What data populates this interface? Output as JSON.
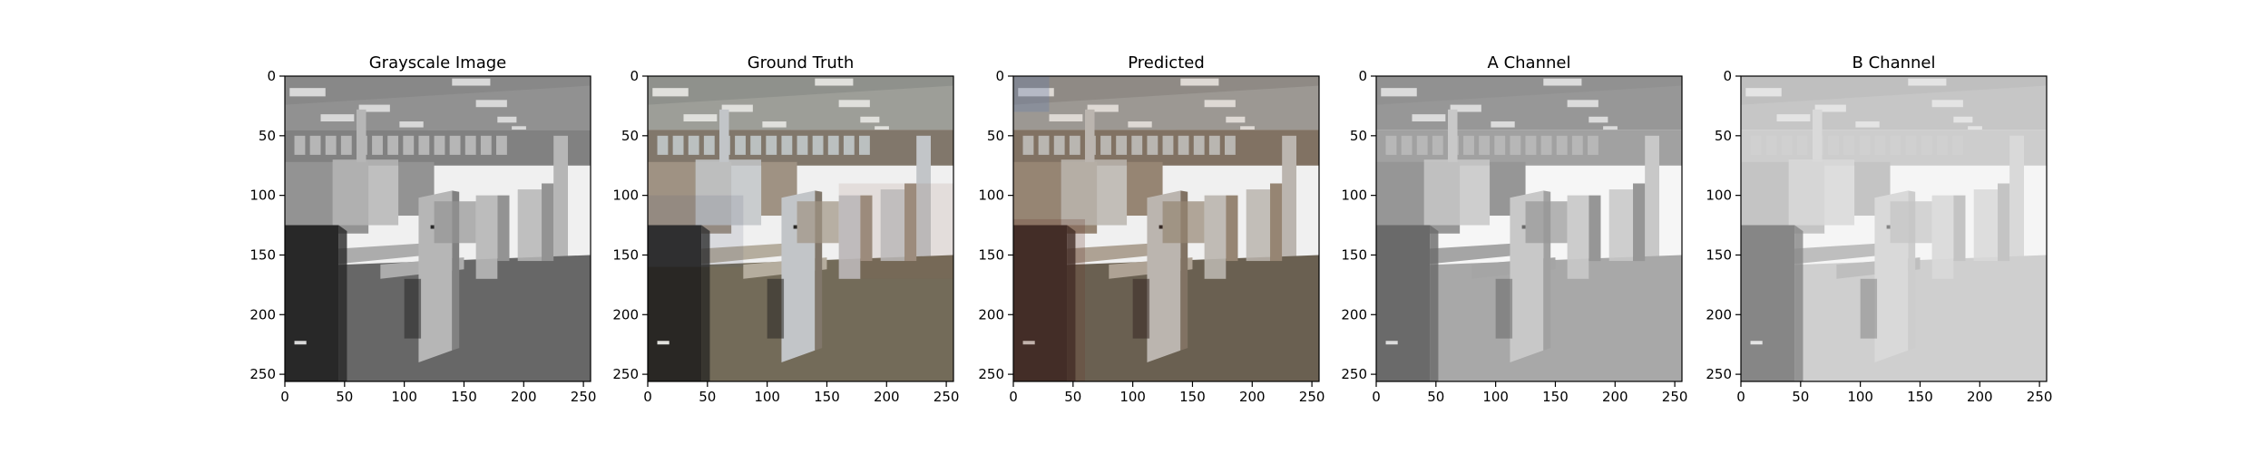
{
  "figure": {
    "panels": [
      {
        "id": "grayscale",
        "title": "Grayscale Image",
        "mode": "gray"
      },
      {
        "id": "ground-truth",
        "title": "Ground Truth",
        "mode": "color"
      },
      {
        "id": "predicted",
        "title": "Predicted",
        "mode": "pred"
      },
      {
        "id": "a-channel",
        "title": "A Channel",
        "mode": "a"
      },
      {
        "id": "b-channel",
        "title": "B Channel",
        "mode": "b"
      }
    ],
    "x_ticks": [
      "0",
      "50",
      "100",
      "150",
      "200",
      "250"
    ],
    "y_ticks": [
      "0",
      "50",
      "100",
      "150",
      "200",
      "250"
    ],
    "x_tick_values": [
      0,
      50,
      100,
      150,
      200,
      250
    ],
    "y_tick_values": [
      0,
      50,
      100,
      150,
      200,
      250
    ],
    "image_extent": [
      0,
      256
    ]
  },
  "colors": {
    "axes": "#000000",
    "background": "#ffffff"
  }
}
